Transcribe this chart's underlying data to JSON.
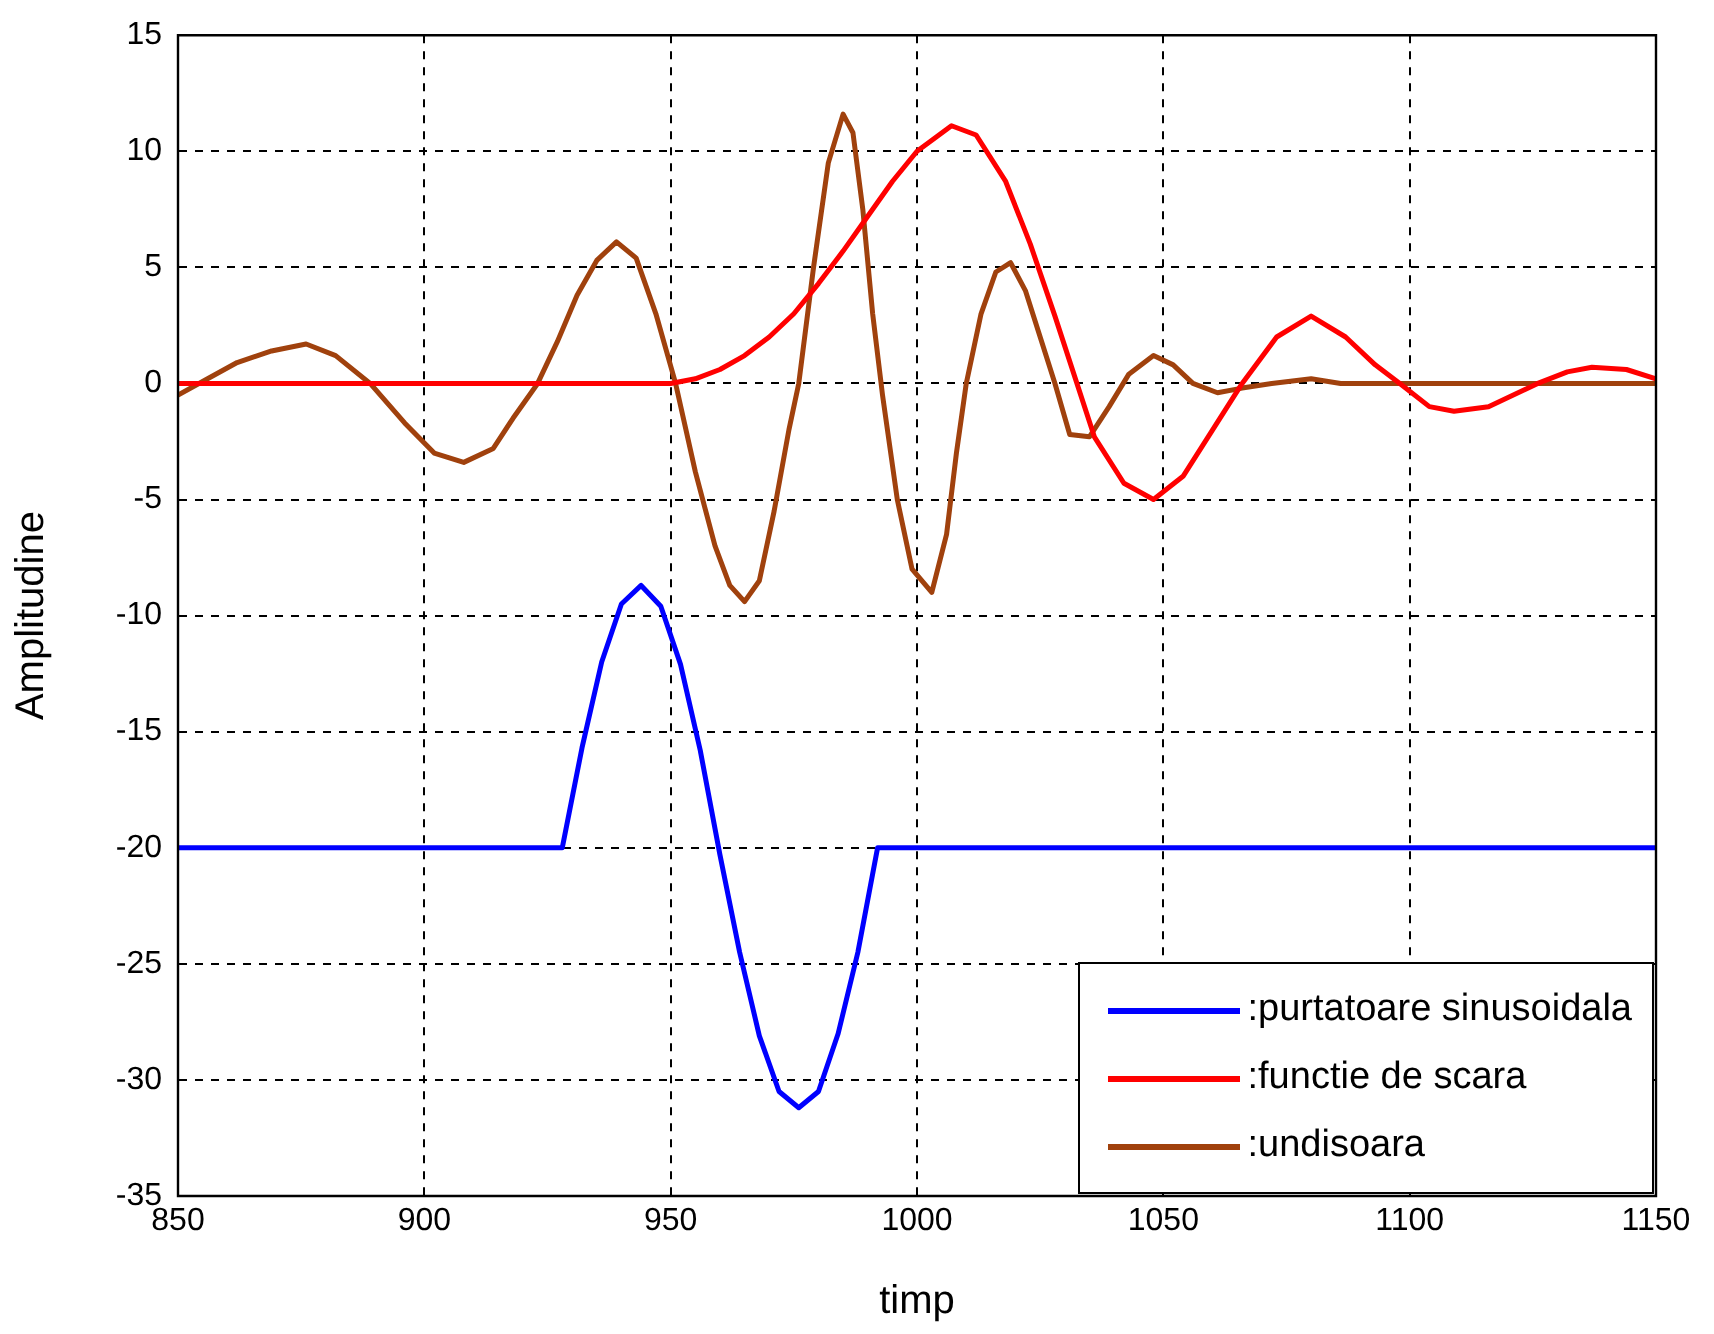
{
  "chart_data": {
    "type": "line",
    "xlabel": "timp",
    "ylabel": "Amplitudine",
    "xlim": [
      850,
      1150
    ],
    "xticks": [
      850,
      900,
      950,
      1000,
      1050,
      1100,
      1150
    ],
    "ylim": [
      -35,
      15
    ],
    "yticks": [
      -35,
      -30,
      -25,
      -20,
      -15,
      -10,
      -5,
      0,
      5,
      10,
      15
    ],
    "grid": true,
    "legend": "bottom right",
    "line_style": "solid",
    "marker": "none",
    "series": [
      {
        "name": ":purtatoare sinusoidala",
        "color": "#0000ff",
        "x": [
          850,
          928,
          932,
          936,
          940,
          944,
          948,
          952,
          956,
          960,
          964,
          968,
          972,
          976,
          980,
          984,
          988,
          992,
          1150
        ],
        "values": [
          -20,
          -20,
          -15.7,
          -12,
          -9.5,
          -8.7,
          -9.6,
          -12.1,
          -15.8,
          -20.3,
          -24.5,
          -28.1,
          -30.5,
          -31.2,
          -30.5,
          -28,
          -24.5,
          -20,
          -20
        ]
      },
      {
        "name": ":functie de scara",
        "color": "#ff0000",
        "x": [
          850,
          950,
          955,
          960,
          965,
          970,
          975,
          980,
          985,
          990,
          995,
          1000,
          1007,
          1012,
          1018,
          1023,
          1028,
          1036,
          1042,
          1048,
          1054,
          1060,
          1066,
          1073,
          1080,
          1087,
          1093,
          1098,
          1104,
          1109,
          1116,
          1126,
          1132,
          1137,
          1144,
          1150
        ],
        "values": [
          0,
          0,
          0.2,
          0.6,
          1.2,
          2,
          3,
          4.3,
          5.7,
          7.2,
          8.7,
          10,
          11.1,
          10.7,
          8.7,
          6,
          2.9,
          -2.3,
          -4.3,
          -5,
          -4,
          -2,
          0,
          2,
          2.9,
          2,
          0.8,
          0,
          -1,
          -1.2,
          -1,
          0,
          0.5,
          0.7,
          0.6,
          0.2
        ]
      },
      {
        "name": ":undisoara",
        "color": "#a0410d",
        "x": [
          850,
          856,
          862,
          869,
          876,
          882,
          889,
          896,
          902,
          908,
          914,
          918,
          923,
          927,
          931,
          935,
          939,
          943,
          947,
          951,
          955,
          959,
          962,
          965,
          968,
          971,
          974,
          976,
          979,
          982,
          985,
          987,
          989,
          991,
          993,
          996,
          999,
          1003,
          1006,
          1008,
          1010,
          1013,
          1016,
          1019,
          1022,
          1025,
          1028,
          1031,
          1035,
          1039,
          1043,
          1048,
          1052,
          1056,
          1061,
          1066,
          1072,
          1080,
          1086,
          1100,
          1150
        ],
        "values": [
          -0.5,
          0.2,
          0.9,
          1.4,
          1.7,
          1.2,
          0,
          -1.7,
          -3,
          -3.4,
          -2.8,
          -1.5,
          0,
          1.8,
          3.8,
          5.3,
          6.1,
          5.4,
          3,
          0,
          -3.8,
          -7,
          -8.7,
          -9.4,
          -8.5,
          -5.5,
          -2,
          0,
          5,
          9.5,
          11.6,
          10.8,
          7.5,
          3,
          -0.5,
          -5,
          -8,
          -9,
          -6.5,
          -3,
          0,
          3,
          4.8,
          5.2,
          4,
          2,
          0,
          -2.2,
          -2.3,
          -1,
          0.4,
          1.2,
          0.8,
          0,
          -0.4,
          -0.2,
          0,
          0.2,
          0,
          0,
          0
        ]
      }
    ]
  }
}
